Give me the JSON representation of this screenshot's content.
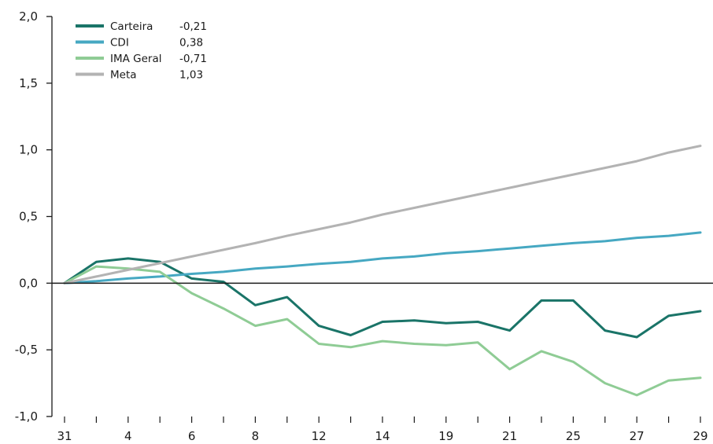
{
  "chart_data": {
    "type": "line",
    "title": "",
    "xlabel": "",
    "ylabel": "",
    "categories": [
      "31",
      "",
      "4",
      "",
      "6",
      "",
      "8",
      "",
      "12",
      "",
      "14",
      "",
      "19",
      "",
      "21",
      "",
      "25",
      "",
      "27",
      "",
      "29"
    ],
    "y_ticks": [
      "2,0",
      "1,5",
      "1,0",
      "0,5",
      "0,0",
      "-0,5",
      "-1,0"
    ],
    "y_tick_values": [
      2.0,
      1.5,
      1.0,
      0.5,
      0.0,
      -0.5,
      -1.0
    ],
    "ylim": [
      -1.0,
      2.0
    ],
    "grid": false,
    "legend_position": "top-left",
    "series": [
      {
        "name": "Carteira",
        "legend_value": "-0,21",
        "color": "#1a7468",
        "values": [
          0.0,
          0.16,
          0.185,
          0.16,
          0.035,
          0.01,
          -0.165,
          -0.105,
          -0.32,
          -0.39,
          -0.29,
          -0.28,
          -0.3,
          -0.29,
          -0.355,
          -0.13,
          -0.13,
          -0.355,
          -0.405,
          -0.245,
          -0.21
        ]
      },
      {
        "name": "CDI",
        "legend_value": "0,38",
        "color": "#46a8c2",
        "values": [
          0.0,
          0.015,
          0.035,
          0.05,
          0.07,
          0.085,
          0.11,
          0.125,
          0.145,
          0.16,
          0.185,
          0.2,
          0.225,
          0.24,
          0.26,
          0.28,
          0.3,
          0.315,
          0.34,
          0.355,
          0.38
        ]
      },
      {
        "name": "IMA Geral",
        "legend_value": "-0,71",
        "color": "#8fcc95",
        "values": [
          0.0,
          0.125,
          0.11,
          0.085,
          -0.075,
          -0.19,
          -0.32,
          -0.27,
          -0.455,
          -0.48,
          -0.435,
          -0.455,
          -0.465,
          -0.445,
          -0.645,
          -0.51,
          -0.59,
          -0.75,
          -0.84,
          -0.73,
          -0.71
        ]
      },
      {
        "name": "Meta",
        "legend_value": "1,03",
        "color": "#b3b3b3",
        "values": [
          0.0,
          0.05,
          0.1,
          0.15,
          0.2,
          0.25,
          0.3,
          0.355,
          0.405,
          0.455,
          0.515,
          0.565,
          0.615,
          0.665,
          0.715,
          0.765,
          0.815,
          0.865,
          0.915,
          0.98,
          1.03
        ]
      }
    ]
  }
}
